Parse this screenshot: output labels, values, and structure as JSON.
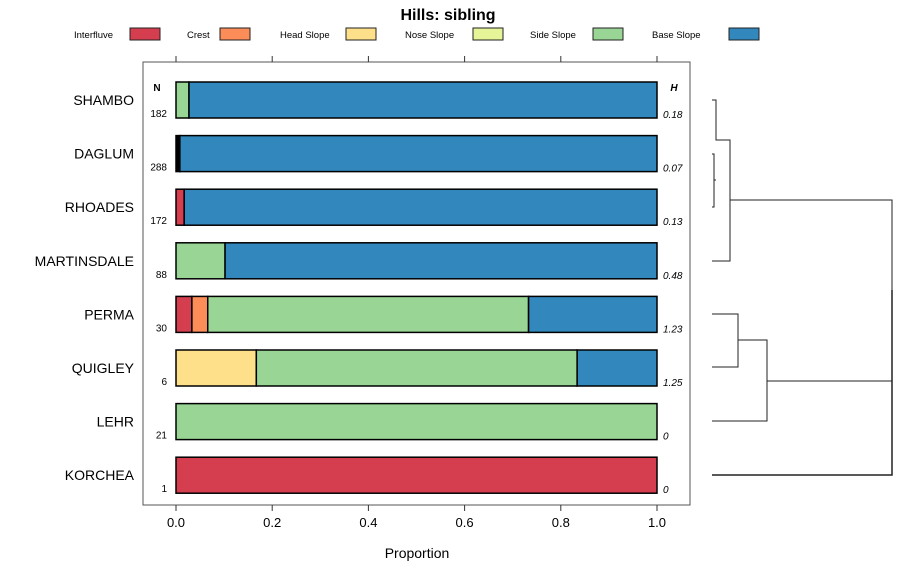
{
  "chart_data": {
    "type": "bar",
    "orientation": "horizontal-stacked",
    "title": "Hills: sibling",
    "xlabel": "Proportion",
    "xlim": [
      0,
      1
    ],
    "xticks": [
      "0.0",
      "0.2",
      "0.4",
      "0.6",
      "0.8",
      "1.0"
    ],
    "n_header": "N",
    "h_header": "H",
    "legend_position": "top",
    "classes": [
      {
        "name": "Interfluve",
        "color": "#d53e4f"
      },
      {
        "name": "Crest",
        "color": "#fc8d59"
      },
      {
        "name": "Head Slope",
        "color": "#fee08b"
      },
      {
        "name": "Nose Slope",
        "color": "#e6f598"
      },
      {
        "name": "Side Slope",
        "color": "#99d594"
      },
      {
        "name": "Base Slope",
        "color": "#3288bd"
      }
    ],
    "other_color": "#000000",
    "rows": [
      {
        "label": "SHAMBO",
        "n": "182",
        "h": "0.18",
        "segments": [
          {
            "cls": "Side Slope",
            "value": 0.027
          },
          {
            "cls": "Base Slope",
            "value": 0.973
          }
        ]
      },
      {
        "label": "DAGLUM",
        "n": "288",
        "h": "0.07",
        "segments": [
          {
            "cls": "other",
            "value": 0.008
          },
          {
            "cls": "Base Slope",
            "value": 0.992
          }
        ]
      },
      {
        "label": "RHOADES",
        "n": "172",
        "h": "0.13",
        "segments": [
          {
            "cls": "Interfluve",
            "value": 0.017
          },
          {
            "cls": "Base Slope",
            "value": 0.983
          }
        ]
      },
      {
        "label": "MARTINSDALE",
        "n": "88",
        "h": "0.48",
        "segments": [
          {
            "cls": "Side Slope",
            "value": 0.102
          },
          {
            "cls": "Base Slope",
            "value": 0.898
          }
        ]
      },
      {
        "label": "PERMA",
        "n": "30",
        "h": "1.23",
        "segments": [
          {
            "cls": "Interfluve",
            "value": 0.033
          },
          {
            "cls": "Crest",
            "value": 0.033
          },
          {
            "cls": "Side Slope",
            "value": 0.667
          },
          {
            "cls": "Base Slope",
            "value": 0.267
          }
        ]
      },
      {
        "label": "QUIGLEY",
        "n": "6",
        "h": "1.25",
        "segments": [
          {
            "cls": "Head Slope",
            "value": 0.167
          },
          {
            "cls": "Side Slope",
            "value": 0.667
          },
          {
            "cls": "Base Slope",
            "value": 0.166
          }
        ]
      },
      {
        "label": "LEHR",
        "n": "21",
        "h": "0",
        "segments": [
          {
            "cls": "Side Slope",
            "value": 1.0
          }
        ]
      },
      {
        "label": "KORCHEA",
        "n": "1",
        "h": "0",
        "segments": [
          {
            "cls": "Interfluve",
            "value": 1.0
          }
        ]
      }
    ]
  }
}
